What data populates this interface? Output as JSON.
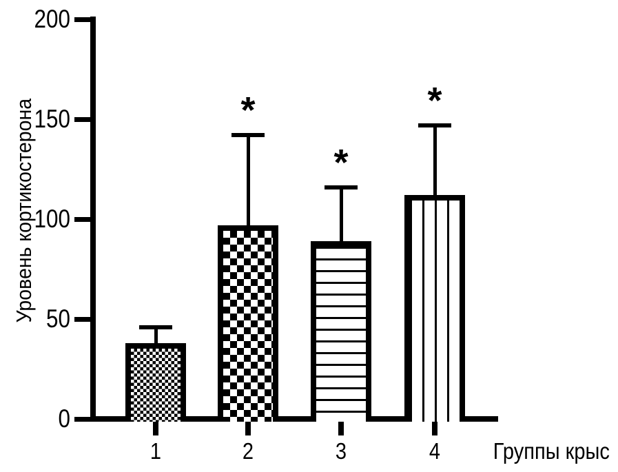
{
  "chart_data": {
    "type": "bar",
    "title": "",
    "ylabel": "Уровень кортикостерона",
    "xlabel": "Группы крыс",
    "categories": [
      "1",
      "2",
      "3",
      "4"
    ],
    "values": [
      38,
      97,
      89,
      112
    ],
    "error_upper": [
      9,
      46,
      28,
      36
    ],
    "error_tops": [
      47,
      143,
      117,
      148
    ],
    "significance": [
      "",
      "*",
      "*",
      "*"
    ],
    "ylim": [
      0,
      200
    ],
    "yticks": [
      "0",
      "50",
      "100",
      "150",
      "200"
    ],
    "bar_patterns": [
      "small-checkerboard",
      "large-checkerboard",
      "horizontal-stripes",
      "vertical-stripes"
    ],
    "bar_color": "#000000",
    "background_color": "#ffffff",
    "grid": false,
    "legend": false
  }
}
